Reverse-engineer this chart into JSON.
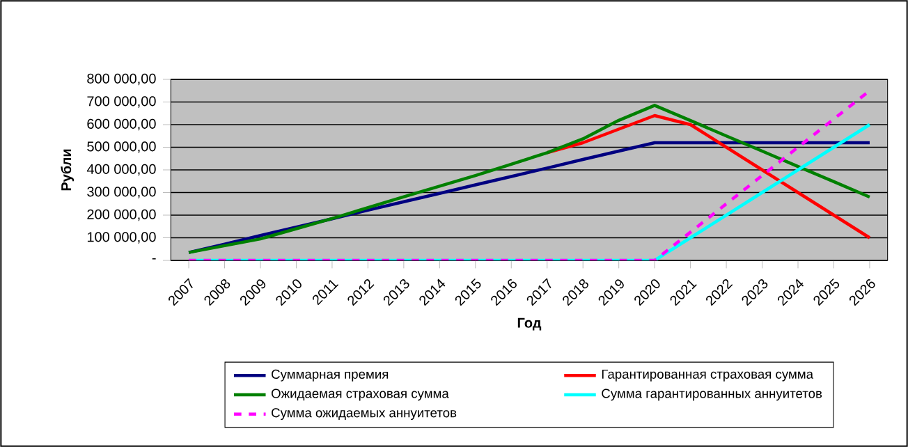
{
  "chart_data": {
    "type": "line",
    "xlabel": "Год",
    "ylabel": "Рубли",
    "categories": [
      "2007",
      "2008",
      "2009",
      "2010",
      "2011",
      "2012",
      "2013",
      "2014",
      "2015",
      "2016",
      "2017",
      "2018",
      "2019",
      "2020",
      "2021",
      "2022",
      "2023",
      "2024",
      "2025",
      "2026"
    ],
    "series": [
      {
        "name": "Суммарная премия",
        "color": "#000080",
        "values": [
          35000,
          72000,
          110000,
          147000,
          184000,
          222000,
          259000,
          296000,
          334000,
          371000,
          408000,
          446000,
          483000,
          520000,
          520000,
          520000,
          520000,
          520000,
          520000,
          520000
        ]
      },
      {
        "name": "Гарантированная страховая сумма",
        "color": "#ff0000",
        "values": [
          null,
          null,
          null,
          null,
          null,
          null,
          null,
          null,
          null,
          null,
          476000,
          520000,
          580000,
          640000,
          600000,
          500000,
          400000,
          300000,
          200000,
          100000
        ]
      },
      {
        "name": "Ожидаемая страховая сумма",
        "color": "#008000",
        "values": [
          35000,
          65000,
          95000,
          140000,
          185000,
          233000,
          281000,
          328000,
          375000,
          425000,
          476000,
          537000,
          619000,
          685000,
          618000,
          550000,
          483000,
          415000,
          348000,
          280000
        ]
      },
      {
        "name": "Сумма гарантированных аннуитетов",
        "color": "#00ffff",
        "values": [
          0,
          0,
          0,
          0,
          0,
          0,
          0,
          0,
          0,
          0,
          0,
          0,
          0,
          0,
          100000,
          200000,
          300000,
          400000,
          500000,
          600000
        ]
      },
      {
        "name": "Сумма ожидаемых аннуитетов",
        "color": "#ff00ff",
        "line_style": "dashed",
        "values": [
          0,
          0,
          0,
          0,
          0,
          0,
          0,
          0,
          0,
          0,
          0,
          0,
          0,
          0,
          125000,
          250000,
          375000,
          500000,
          625000,
          750000
        ]
      }
    ],
    "ylim": [
      0,
      800000
    ],
    "yticks": [
      {
        "value": 0,
        "label": "-"
      },
      {
        "value": 100000,
        "label": "100 000,00"
      },
      {
        "value": 200000,
        "label": "200 000,00"
      },
      {
        "value": 300000,
        "label": "300 000,00"
      },
      {
        "value": 400000,
        "label": "400 000,00"
      },
      {
        "value": 500000,
        "label": "500 000,00"
      },
      {
        "value": 600000,
        "label": "600 000,00"
      },
      {
        "value": 700000,
        "label": "700 000,00"
      },
      {
        "value": 800000,
        "label": "800 000,00"
      }
    ],
    "grid": "y",
    "legend": "bottom"
  }
}
